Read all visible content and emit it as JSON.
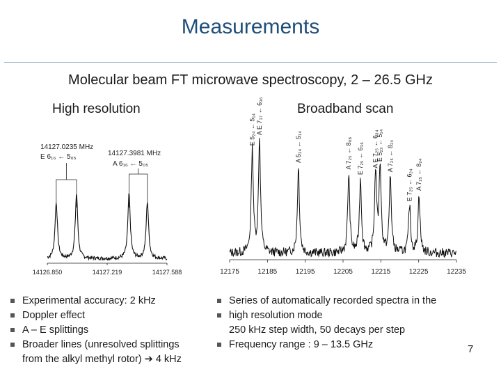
{
  "title": "Measurements",
  "subtitle": "Molecular beam FT microwave spectroscopy, 2 – 26.5 GHz",
  "left_heading": "High resolution",
  "right_heading": "Broadband scan",
  "page_number": "7",
  "left_bullets": [
    {
      "text": "Experimental accuracy: 2 kHz"
    },
    {
      "text": "Doppler effect"
    },
    {
      "text": "A – E splittings"
    },
    {
      "text": "Broader lines (unresolved splittings",
      "cont": "from the alkyl methyl rotor) ➔ 4 kHz"
    }
  ],
  "right_bullets": [
    {
      "text": "Series of automatically recorded spectra in the"
    },
    {
      "text": "high resolution mode",
      "cont": "250 kHz step width, 50 decays per step"
    },
    {
      "text": "Frequency range : 9 – 13.5 GHz"
    }
  ],
  "chart_data": [
    {
      "type": "line",
      "name": "high-resolution spectrum",
      "xlim": [
        14126.85,
        14127.588
      ],
      "ylim": [
        0,
        1
      ],
      "x_ticks": [
        "14126.850",
        "14127.219",
        "14127.588"
      ],
      "peaks": [
        {
          "x": 14126.905,
          "height": 0.62
        },
        {
          "x": 14127.03,
          "height": 0.72
        },
        {
          "x": 14127.354,
          "height": 0.71
        },
        {
          "x": 14127.467,
          "height": 0.63
        }
      ],
      "annotations": [
        {
          "freq": "14127.0235 MHz",
          "label": "E 6₁₆ ← 5₀₅"
        },
        {
          "freq": "14127.3981 MHz",
          "label": "A 6₁₆ ← 5₀₅"
        }
      ]
    },
    {
      "type": "line",
      "name": "broadband scan",
      "xlim": [
        12175,
        12235
      ],
      "ylim": [
        0,
        1
      ],
      "x_ticks": [
        "12175",
        "12185",
        "12195",
        "12205",
        "12215",
        "12225",
        "12235"
      ],
      "peaks": [
        {
          "x": 12181.0,
          "height": 0.78,
          "label": "E 5₂₄ ← 5₁₄"
        },
        {
          "x": 12182.9,
          "height": 0.86,
          "label": "A E 7₃₇ ← 6₃₆"
        },
        {
          "x": 12193.2,
          "height": 0.65,
          "label": "A 5₂₄ ← 5₁₄"
        },
        {
          "x": 12206.5,
          "height": 0.6,
          "label": "A 7₂₅ ← 8₀₈"
        },
        {
          "x": 12209.6,
          "height": 0.56,
          "label": "E 7₂₅ ← 6₃₆"
        },
        {
          "x": 12213.6,
          "height": 0.61,
          "label": "A E 7₂₅ ← 6₃₄"
        },
        {
          "x": 12214.8,
          "height": 0.66,
          "label": "E 5₂₃ ← 5₁₄"
        },
        {
          "x": 12217.5,
          "height": 0.58,
          "label": "A 7₂₅ ← 8₂₄"
        },
        {
          "x": 12222.6,
          "height": 0.36,
          "label": "E 7₂₅ ← 6₂₄"
        },
        {
          "x": 12225.1,
          "height": 0.44,
          "label": "A 7₂₅ ← 8₂₄"
        }
      ]
    }
  ]
}
